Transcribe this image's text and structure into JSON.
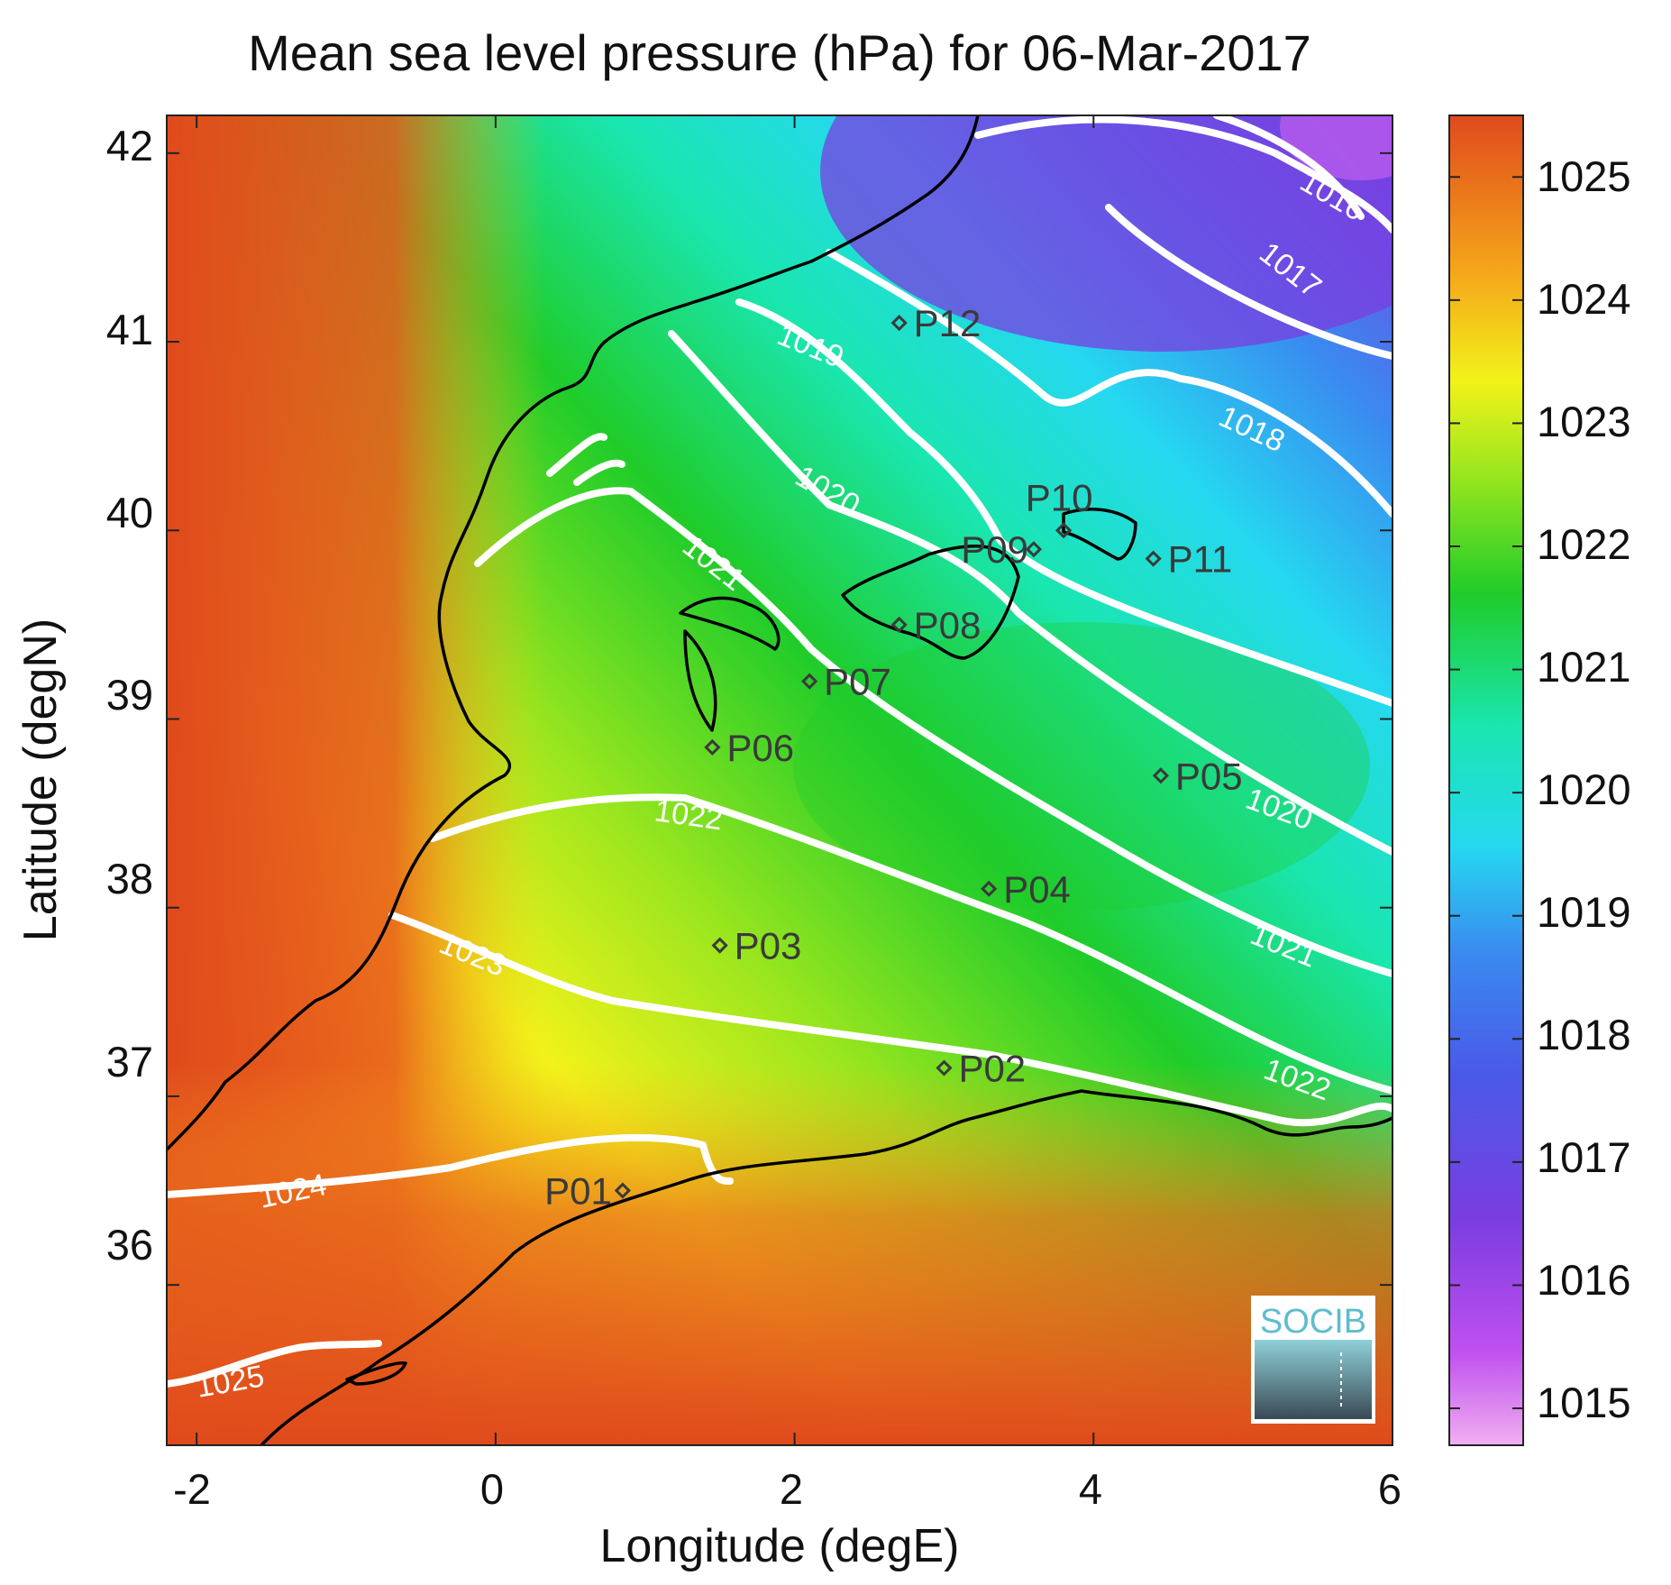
{
  "title": "Mean sea level pressure (hPa) for 06-Mar-2017",
  "xlabel": "Longitude (degE)",
  "ylabel": "Latitude (degN)",
  "x_ticks": [
    "-2",
    "0",
    "2",
    "4",
    "6"
  ],
  "y_ticks": [
    "42",
    "41",
    "40",
    "39",
    "38",
    "37",
    "36"
  ],
  "colorbar_ticks": [
    "1025",
    "1024",
    "1023",
    "1022",
    "1021",
    "1020",
    "1019",
    "1018",
    "1017",
    "1016",
    "1015"
  ],
  "contour_labels": [
    {
      "text": "1016"
    },
    {
      "text": "1017"
    },
    {
      "text": "1018"
    },
    {
      "text": "1019"
    },
    {
      "text": "1020"
    },
    {
      "text": "1020"
    },
    {
      "text": "1021"
    },
    {
      "text": "1021"
    },
    {
      "text": "1022"
    },
    {
      "text": "1022"
    },
    {
      "text": "1023"
    },
    {
      "text": "1024"
    },
    {
      "text": "1025"
    }
  ],
  "points": [
    {
      "name": "P01",
      "lon": 0.85,
      "lat": 36.5
    },
    {
      "name": "P02",
      "lon": 3.0,
      "lat": 37.15
    },
    {
      "name": "P03",
      "lon": 1.5,
      "lat": 37.8
    },
    {
      "name": "P04",
      "lon": 3.3,
      "lat": 38.1
    },
    {
      "name": "P05",
      "lon": 4.45,
      "lat": 38.7
    },
    {
      "name": "P06",
      "lon": 1.45,
      "lat": 38.85
    },
    {
      "name": "P07",
      "lon": 2.1,
      "lat": 39.2
    },
    {
      "name": "P08",
      "lon": 2.7,
      "lat": 39.5
    },
    {
      "name": "P09",
      "lon": 3.6,
      "lat": 39.9
    },
    {
      "name": "P10",
      "lon": 3.8,
      "lat": 40.0
    },
    {
      "name": "P11",
      "lon": 4.4,
      "lat": 39.85
    },
    {
      "name": "P12",
      "lon": 2.7,
      "lat": 41.1
    }
  ],
  "logo_text": "SOCIB",
  "colors": {
    "high": "#e04a1c",
    "mid": "#2fd02f",
    "low": "#7a3de0",
    "colorbar": [
      "#f0b0f0",
      "#b040f0",
      "#6a3fe0",
      "#3a8af0",
      "#25d8f0",
      "#1ae6b0",
      "#1fcc2a",
      "#9ae61e",
      "#f2f21a",
      "#f5a81a",
      "#e04a1c"
    ]
  },
  "chart_data": {
    "type": "heatmap",
    "title": "Mean sea level pressure (hPa) for 06-Mar-2017",
    "xlabel": "Longitude (degE)",
    "ylabel": "Latitude (degN)",
    "xlim": [
      -2.2,
      6.0
    ],
    "ylim": [
      35.15,
      42.2
    ],
    "colorbar_range": [
      1014.7,
      1025.5
    ],
    "contour_levels": [
      1016,
      1017,
      1018,
      1019,
      1020,
      1021,
      1022,
      1023,
      1024,
      1025
    ]
  }
}
